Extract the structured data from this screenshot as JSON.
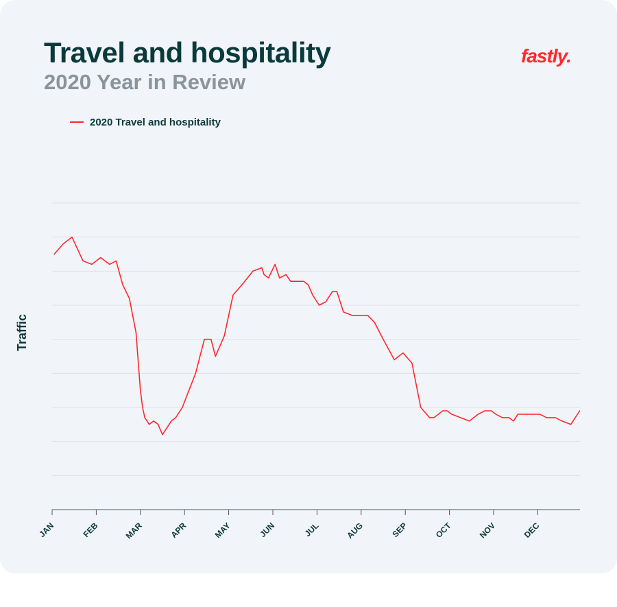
{
  "header": {
    "title": "Travel and hospitality",
    "subtitle": "2020 Year in Review",
    "logo_text": "fastly."
  },
  "colors": {
    "line": "#ff282d",
    "title": "#0b3a3c",
    "subtitle": "#8a949c",
    "background": "#f1f4f8",
    "grid": "#dde2e7"
  },
  "chart_data": {
    "type": "line",
    "ylabel": "Traffic",
    "xlabel": "",
    "ylim": [
      0,
      9
    ],
    "y_gridlines": [
      1,
      2,
      3,
      4,
      5,
      6,
      7,
      8,
      9
    ],
    "y_tick_labels_shown": false,
    "grid": true,
    "legend_position": "top-left",
    "x_tick_labels": [
      "JAN",
      "FEB",
      "MAR",
      "APR",
      "MAY",
      "JUN",
      "JUL",
      "AUG",
      "SEP",
      "OCT",
      "NOV",
      "DEC"
    ],
    "series": [
      {
        "name": "2020 Travel and hospitality",
        "x": [
          0.05,
          0.25,
          0.45,
          0.7,
          0.9,
          1.1,
          1.3,
          1.45,
          1.6,
          1.75,
          1.9,
          2.0,
          2.05,
          2.1,
          2.2,
          2.3,
          2.4,
          2.5,
          2.6,
          2.7,
          2.8,
          2.95,
          3.1,
          3.25,
          3.35,
          3.45,
          3.55,
          3.6,
          3.7,
          3.9,
          4.1,
          4.3,
          4.55,
          4.75,
          4.8,
          4.9,
          5.05,
          5.15,
          5.3,
          5.4,
          5.55,
          5.7,
          5.8,
          5.9,
          6.05,
          6.2,
          6.35,
          6.45,
          6.6,
          6.8,
          7.0,
          7.15,
          7.3,
          7.5,
          7.75,
          7.95,
          8.15,
          8.35,
          8.55,
          8.65,
          8.75,
          8.85,
          8.95,
          9.05,
          9.25,
          9.45,
          9.65,
          9.8,
          9.95,
          10.05,
          10.2,
          10.35,
          10.45,
          10.55,
          10.65,
          10.75,
          10.9,
          11.05,
          11.2,
          11.4,
          11.55,
          11.65,
          11.75,
          11.95
        ],
        "y": [
          7.5,
          7.8,
          8.0,
          7.3,
          7.2,
          7.4,
          7.2,
          7.3,
          6.6,
          6.2,
          5.2,
          3.5,
          3.0,
          2.7,
          2.5,
          2.6,
          2.5,
          2.2,
          2.4,
          2.6,
          2.7,
          3.0,
          3.5,
          4.0,
          4.5,
          5.0,
          5.0,
          5.0,
          4.5,
          5.1,
          6.3,
          6.6,
          7.0,
          7.1,
          6.9,
          6.8,
          7.2,
          6.8,
          6.9,
          6.7,
          6.7,
          6.7,
          6.6,
          6.3,
          6.0,
          6.1,
          6.4,
          6.4,
          5.8,
          5.7,
          5.7,
          5.7,
          5.5,
          5.0,
          4.4,
          4.6,
          4.3,
          3.0,
          2.7,
          2.7,
          2.8,
          2.9,
          2.9,
          2.8,
          2.7,
          2.6,
          2.8,
          2.9,
          2.9,
          2.8,
          2.7,
          2.7,
          2.6,
          2.8,
          2.8,
          2.8,
          2.8,
          2.8,
          2.7,
          2.7,
          2.6,
          2.55,
          2.5,
          2.9
        ]
      }
    ]
  }
}
